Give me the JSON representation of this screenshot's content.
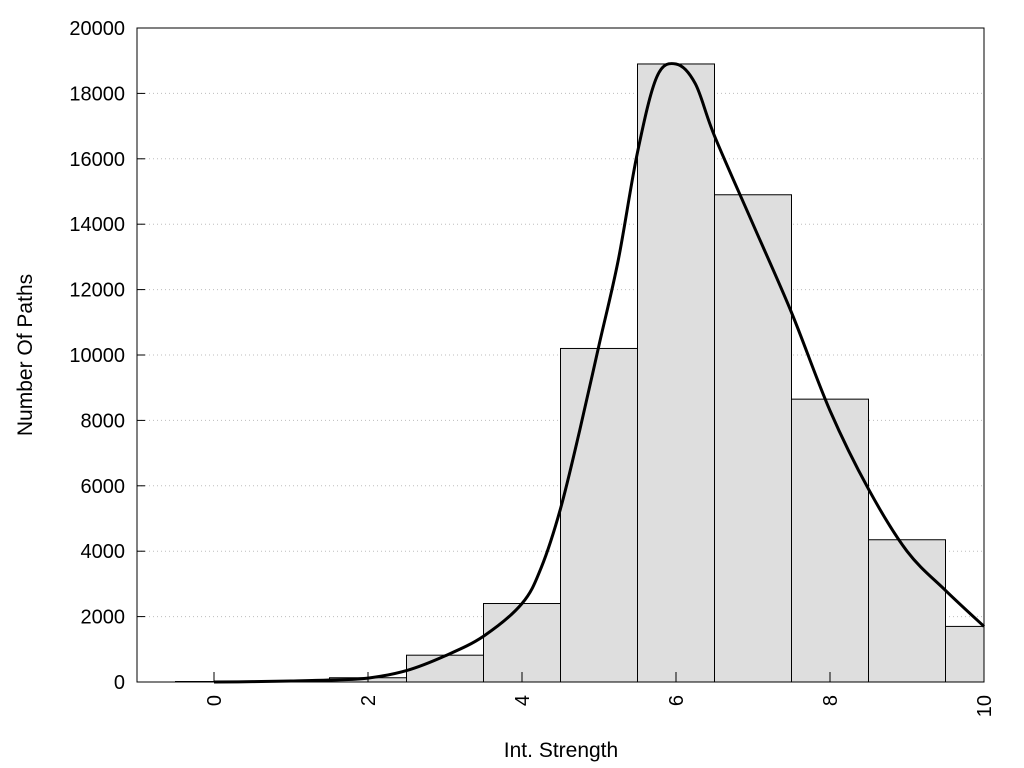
{
  "chart_data": {
    "type": "bar",
    "title": "",
    "xlabel": "Int. Strength",
    "ylabel": "Number Of Paths",
    "xlim": [
      -1,
      10
    ],
    "ylim": [
      0,
      20000
    ],
    "xticks": [
      0,
      2,
      4,
      6,
      8,
      10
    ],
    "yticks": [
      0,
      2000,
      4000,
      6000,
      8000,
      10000,
      12000,
      14000,
      16000,
      18000,
      20000
    ],
    "grid": "y-dotted",
    "legend": "none",
    "bar_color": "#dedede",
    "line_color": "#000000",
    "categories": [
      0,
      1,
      2,
      3,
      4,
      5,
      6,
      7,
      8,
      9,
      10
    ],
    "values": [
      0,
      30,
      130,
      820,
      2400,
      10200,
      18900,
      14900,
      8650,
      4350,
      1700
    ],
    "series": [
      {
        "type": "line",
        "x": [
          0,
          0.5,
          1,
          1.5,
          2,
          2.5,
          3,
          3.5,
          4,
          4.25,
          4.5,
          4.75,
          5,
          5.25,
          5.5,
          5.75,
          6,
          6.25,
          6.5,
          7,
          7.5,
          8,
          8.5,
          9,
          9.5,
          10
        ],
        "y": [
          0,
          10,
          30,
          60,
          120,
          350,
          800,
          1400,
          2400,
          3500,
          5300,
          7700,
          10300,
          12900,
          16200,
          18500,
          18900,
          18300,
          16700,
          14000,
          11300,
          8300,
          5900,
          4000,
          2800,
          1700
        ]
      }
    ]
  }
}
